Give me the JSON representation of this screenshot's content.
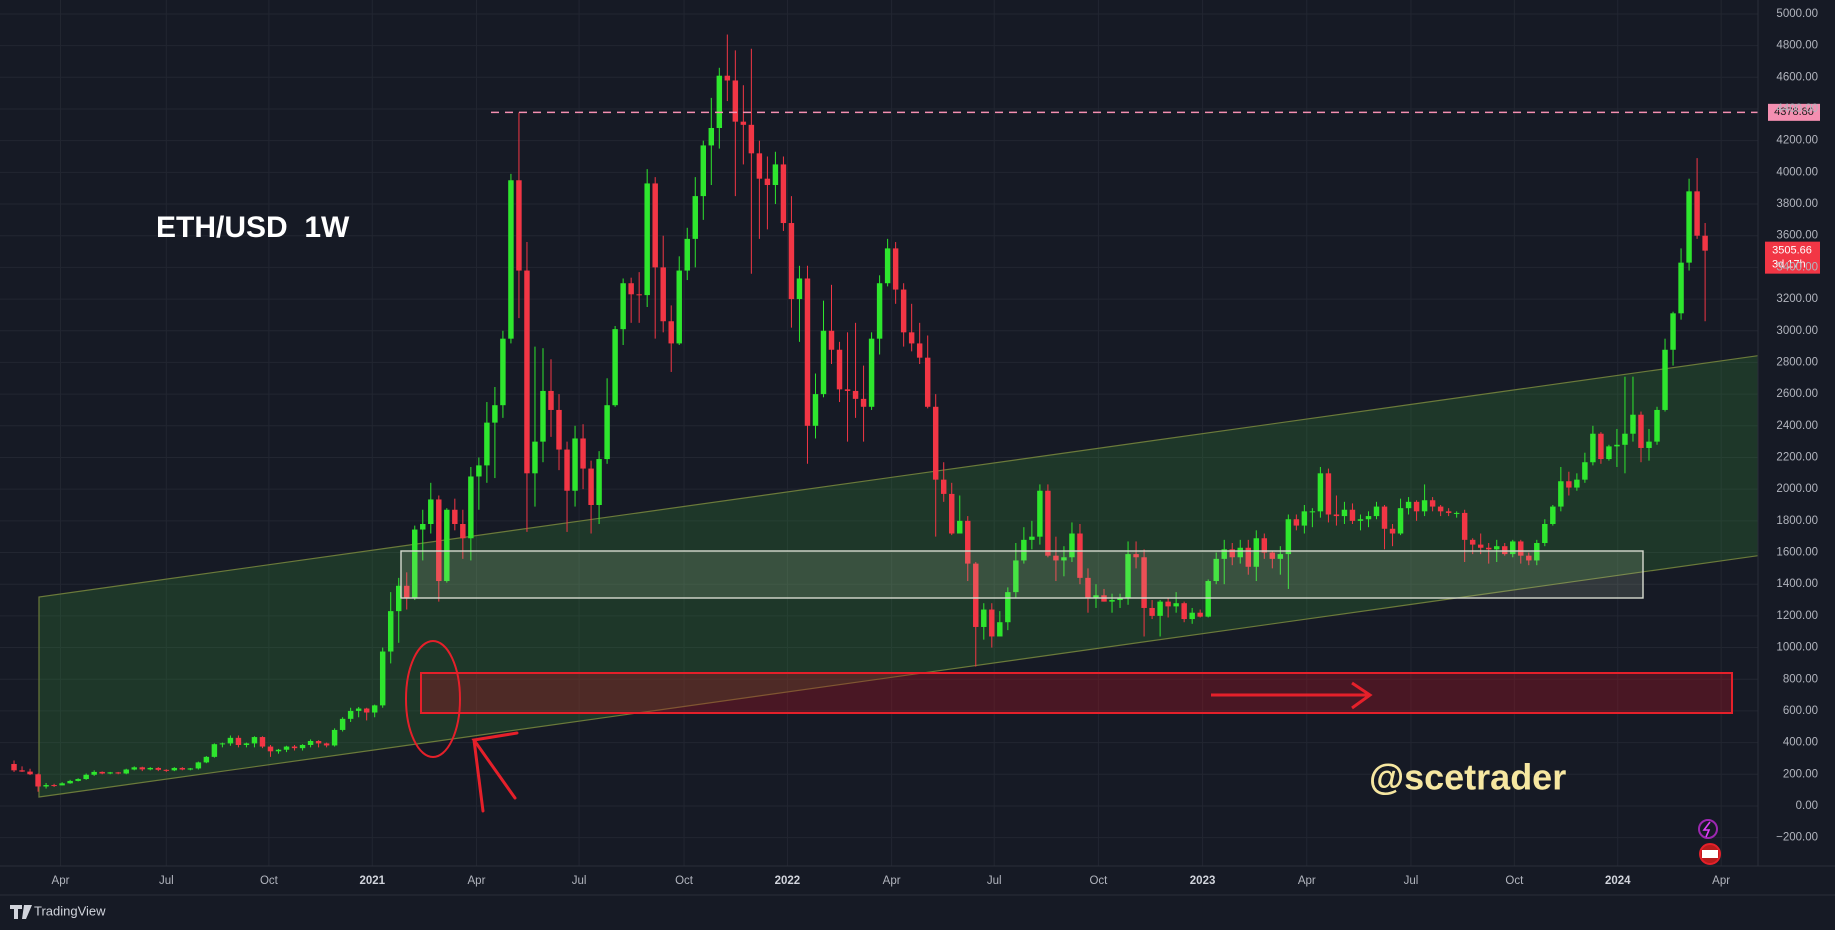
{
  "chart_data": {
    "type": "candlestick",
    "title": "ETH/USD  1W",
    "watermark": "@scetrader",
    "open": [
      265,
      225,
      217,
      200,
      123,
      132,
      130,
      143,
      158,
      170,
      197,
      215,
      205,
      212,
      205,
      230,
      244,
      231,
      240,
      228,
      225,
      240,
      230,
      237,
      275,
      310,
      390,
      395,
      430,
      385,
      395,
      435,
      375,
      345,
      355,
      375,
      365,
      385,
      410,
      395,
      382,
      480,
      550,
      600,
      615,
      590,
      635,
      975,
      1230,
      1390,
      1315,
      1745,
      1780,
      1935,
      1420,
      1870,
      1780,
      1690,
      2080,
      2150,
      2420,
      2530,
      2950,
      3950,
      3380,
      2100,
      2300,
      2620,
      2500,
      2250,
      1990,
      2320,
      2130,
      1900,
      2190,
      2530,
      3010,
      3300,
      3230,
      3225,
      3930,
      3400,
      3060,
      2920,
      3380,
      3580,
      3850,
      4170,
      4280,
      4610,
      4580,
      4320,
      4300,
      4120,
      3960,
      3920,
      4050,
      3680,
      3200,
      3330,
      2400,
      2600,
      3000,
      2880,
      2630,
      2620,
      2570,
      2520,
      2950,
      3300,
      3520,
      3260,
      2990,
      2920,
      2830,
      2520,
      2060,
      1970,
      1720,
      1800,
      1530,
      1130,
      1240,
      1070,
      1160,
      1350,
      1550,
      1680,
      1700,
      1990,
      1580,
      1550,
      1570,
      1720,
      1440,
      1310,
      1330,
      1290,
      1300,
      1310,
      1590,
      1570,
      1250,
      1200,
      1290,
      1260,
      1280,
      1180,
      1220,
      1195,
      1420,
      1560,
      1620,
      1570,
      1630,
      1510,
      1690,
      1600,
      1560,
      1590,
      1810,
      1770,
      1860,
      1860,
      2100,
      1840,
      1830,
      1870,
      1800,
      1810,
      1830,
      1890,
      1750,
      1720,
      1880,
      1920,
      1860,
      1930,
      1890,
      1860,
      1850,
      1850,
      1680,
      1650,
      1630,
      1620,
      1640,
      1590,
      1670,
      1580,
      1550,
      1660,
      1780,
      1890,
      2050,
      2010,
      2060,
      2170,
      2350,
      2190,
      2270,
      2280,
      2350,
      2470,
      2260,
      2300,
      2500,
      2880,
      3110,
      3430,
      3880,
      3600
    ],
    "high": [
      287,
      250,
      235,
      205,
      145,
      140,
      150,
      165,
      175,
      205,
      225,
      218,
      215,
      215,
      235,
      250,
      248,
      245,
      245,
      232,
      245,
      245,
      240,
      280,
      315,
      395,
      400,
      445,
      445,
      400,
      440,
      440,
      385,
      360,
      380,
      385,
      390,
      420,
      415,
      400,
      490,
      560,
      620,
      625,
      620,
      640,
      1000,
      1350,
      1440,
      1475,
      1770,
      1870,
      2040,
      1960,
      1880,
      1940,
      1870,
      2140,
      2200,
      2550,
      2645,
      3000,
      3990,
      4378,
      3560,
      2900,
      2890,
      2820,
      2600,
      2300,
      2400,
      2410,
      2180,
      2240,
      2700,
      3030,
      3330,
      3335,
      3370,
      4020,
      3970,
      3600,
      3160,
      3470,
      3650,
      3970,
      4200,
      4470,
      4660,
      4870,
      4770,
      4550,
      4780,
      4200,
      4100,
      4130,
      4100,
      3850,
      3410,
      3410,
      2730,
      3190,
      3290,
      2930,
      2990,
      3050,
      2780,
      2990,
      3350,
      3580,
      3560,
      3300,
      3170,
      3050,
      2970,
      2600,
      2170,
      2040,
      1960,
      1830,
      1540,
      1280,
      1280,
      1230,
      1380,
      1660,
      1760,
      1800,
      2030,
      2030,
      1700,
      1640,
      1790,
      1780,
      1500,
      1400,
      1370,
      1340,
      1340,
      1670,
      1670,
      1620,
      1300,
      1300,
      1310,
      1350,
      1290,
      1250,
      1240,
      1430,
      1600,
      1680,
      1660,
      1680,
      1680,
      1740,
      1720,
      1610,
      1640,
      1840,
      1840,
      1900,
      1880,
      2140,
      2130,
      1960,
      1920,
      1910,
      1840,
      1860,
      1920,
      1900,
      1780,
      1940,
      1950,
      1930,
      2030,
      1950,
      1900,
      1880,
      1860,
      1870,
      1690,
      1720,
      1660,
      1680,
      1660,
      1680,
      1680,
      1600,
      1680,
      1810,
      1900,
      2140,
      2110,
      2100,
      2230,
      2400,
      2360,
      2280,
      2380,
      2710,
      2710,
      2490,
      2380,
      2520,
      2950,
      3120,
      3520,
      3960,
      4090,
      3680
    ],
    "low": [
      215,
      215,
      195,
      90,
      110,
      120,
      130,
      140,
      155,
      165,
      190,
      200,
      200,
      200,
      200,
      225,
      220,
      225,
      220,
      215,
      220,
      225,
      225,
      230,
      270,
      305,
      370,
      380,
      370,
      370,
      370,
      365,
      310,
      330,
      340,
      350,
      350,
      370,
      370,
      370,
      375,
      470,
      530,
      560,
      540,
      560,
      620,
      900,
      1030,
      1240,
      1300,
      1550,
      1720,
      1290,
      1410,
      1740,
      1560,
      1550,
      1870,
      2040,
      2070,
      2450,
      2920,
      3080,
      1730,
      1890,
      2170,
      2330,
      2120,
      1730,
      1890,
      2000,
      1720,
      1780,
      2160,
      2520,
      2910,
      3050,
      3050,
      3150,
      2950,
      2990,
      2740,
      2910,
      3320,
      3400,
      3700,
      3920,
      4150,
      4450,
      3850,
      4050,
      3360,
      3580,
      3640,
      3800,
      3630,
      3020,
      2930,
      2160,
      2320,
      2580,
      2790,
      2550,
      2300,
      2450,
      2300,
      2500,
      2850,
      3280,
      3170,
      2900,
      2870,
      2790,
      2510,
      1700,
      1920,
      1710,
      1720,
      1420,
      880,
      1050,
      1000,
      1070,
      1110,
      1310,
      1530,
      1620,
      1650,
      1570,
      1420,
      1450,
      1540,
      1400,
      1220,
      1250,
      1290,
      1220,
      1250,
      1270,
      1500,
      1070,
      1180,
      1070,
      1190,
      1220,
      1160,
      1150,
      1190,
      1190,
      1400,
      1400,
      1520,
      1530,
      1460,
      1420,
      1560,
      1500,
      1460,
      1370,
      1740,
      1720,
      1760,
      1820,
      1790,
      1770,
      1780,
      1780,
      1740,
      1760,
      1810,
      1620,
      1640,
      1710,
      1840,
      1800,
      1830,
      1860,
      1830,
      1830,
      1820,
      1540,
      1590,
      1590,
      1530,
      1540,
      1580,
      1570,
      1530,
      1520,
      1520,
      1640,
      1770,
      1860,
      1960,
      1990,
      2040,
      2150,
      2160,
      2180,
      2140,
      2100,
      2300,
      2170,
      2180,
      2280,
      2490,
      2780,
      3070,
      3380,
      3580,
      3060
    ],
    "close": [
      225,
      217,
      200,
      123,
      132,
      130,
      143,
      158,
      170,
      197,
      215,
      205,
      212,
      205,
      230,
      244,
      231,
      240,
      228,
      225,
      240,
      230,
      237,
      275,
      310,
      390,
      395,
      430,
      385,
      395,
      435,
      375,
      345,
      355,
      375,
      365,
      385,
      410,
      395,
      382,
      480,
      550,
      600,
      615,
      590,
      635,
      975,
      1230,
      1390,
      1315,
      1745,
      1780,
      1935,
      1420,
      1870,
      1780,
      1690,
      2080,
      2150,
      2420,
      2530,
      2950,
      3950,
      3380,
      2100,
      2300,
      2620,
      2500,
      2250,
      1990,
      2320,
      2130,
      1900,
      2190,
      2530,
      3010,
      3300,
      3230,
      3225,
      3930,
      3400,
      3060,
      2920,
      3380,
      3580,
      3850,
      4170,
      4280,
      4610,
      4580,
      4320,
      4300,
      4120,
      3960,
      3920,
      4050,
      3680,
      3200,
      3330,
      2400,
      2600,
      3000,
      2880,
      2630,
      2620,
      2570,
      2520,
      2950,
      3300,
      3520,
      3260,
      2990,
      2920,
      2830,
      2520,
      2060,
      1970,
      1720,
      1800,
      1530,
      1130,
      1240,
      1070,
      1160,
      1350,
      1550,
      1680,
      1700,
      1990,
      1580,
      1550,
      1570,
      1720,
      1440,
      1310,
      1330,
      1290,
      1300,
      1310,
      1590,
      1570,
      1250,
      1200,
      1290,
      1260,
      1280,
      1180,
      1220,
      1195,
      1420,
      1560,
      1620,
      1570,
      1630,
      1510,
      1690,
      1600,
      1560,
      1590,
      1810,
      1770,
      1860,
      1860,
      2100,
      1840,
      1830,
      1870,
      1800,
      1810,
      1830,
      1890,
      1750,
      1720,
      1880,
      1920,
      1860,
      1930,
      1890,
      1860,
      1850,
      1850,
      1680,
      1650,
      1630,
      1620,
      1640,
      1590,
      1670,
      1580,
      1550,
      1660,
      1780,
      1890,
      2050,
      2010,
      2060,
      2170,
      2350,
      2190,
      2270,
      2280,
      2350,
      2470,
      2260,
      2300,
      2500,
      2880,
      3110,
      3430,
      3880,
      3600,
      3505.66
    ],
    "up_color": "#2ee62e",
    "down_color": "#f23645",
    "xlim": [
      -1.75,
      217.6
    ],
    "xticks": [
      {
        "value": 5.8,
        "label": "Apr"
      },
      {
        "value": 19,
        "label": "Jul"
      },
      {
        "value": 31.8,
        "label": "Oct"
      },
      {
        "value": 44.7,
        "label": "2021"
      },
      {
        "value": 57.7,
        "label": "Apr"
      },
      {
        "value": 70.5,
        "label": "Jul"
      },
      {
        "value": 83.6,
        "label": "Oct"
      },
      {
        "value": 96.5,
        "label": "2022"
      },
      {
        "value": 109.5,
        "label": "Apr"
      },
      {
        "value": 122.3,
        "label": "Jul"
      },
      {
        "value": 135.3,
        "label": "Oct"
      },
      {
        "value": 148.3,
        "label": "2023"
      },
      {
        "value": 161.3,
        "label": "Apr"
      },
      {
        "value": 174.3,
        "label": "Jul"
      },
      {
        "value": 187.2,
        "label": "Oct"
      },
      {
        "value": 200.1,
        "label": "2024"
      },
      {
        "value": 213,
        "label": "Apr"
      }
    ],
    "ylim": [
      -379,
      5088
    ],
    "yticks": [
      {
        "value": 5000,
        "label": "5000.00"
      },
      {
        "value": 4800,
        "label": "4800.00"
      },
      {
        "value": 4600,
        "label": "4600.00"
      },
      {
        "value": 4400,
        "label": "4400.00"
      },
      {
        "value": 4200,
        "label": "4200.00"
      },
      {
        "value": 4000,
        "label": "4000.00"
      },
      {
        "value": 3800,
        "label": "3800.00"
      },
      {
        "value": 3600,
        "label": "3600.00"
      },
      {
        "value": 3400,
        "label": "3400.00"
      },
      {
        "value": 3200,
        "label": "3200.00"
      },
      {
        "value": 3000,
        "label": "3000.00"
      },
      {
        "value": 2800,
        "label": "2800.00"
      },
      {
        "value": 2600,
        "label": "2600.00"
      },
      {
        "value": 2400,
        "label": "2400.00"
      },
      {
        "value": 2200,
        "label": "2200.00"
      },
      {
        "value": 2000,
        "label": "2000.00"
      },
      {
        "value": 1800,
        "label": "1800.00"
      },
      {
        "value": 1600,
        "label": "1600.00"
      },
      {
        "value": 1400,
        "label": "1400.00"
      },
      {
        "value": 1200,
        "label": "1200.00"
      },
      {
        "value": 1000,
        "label": "1000.00"
      },
      {
        "value": 800,
        "label": "800.00"
      },
      {
        "value": 600,
        "label": "600.00"
      },
      {
        "value": 400,
        "label": "400.00"
      },
      {
        "value": 200,
        "label": "200.00"
      },
      {
        "value": 0,
        "label": "0.00"
      },
      {
        "value": -200,
        "label": "−200.00"
      }
    ],
    "grid": true,
    "hline": {
      "value": 4378.8,
      "label": "4378.80",
      "color": "#f48fb1"
    },
    "countdown": "3d 17h"
  },
  "footer": {
    "brand": "TradingView"
  }
}
